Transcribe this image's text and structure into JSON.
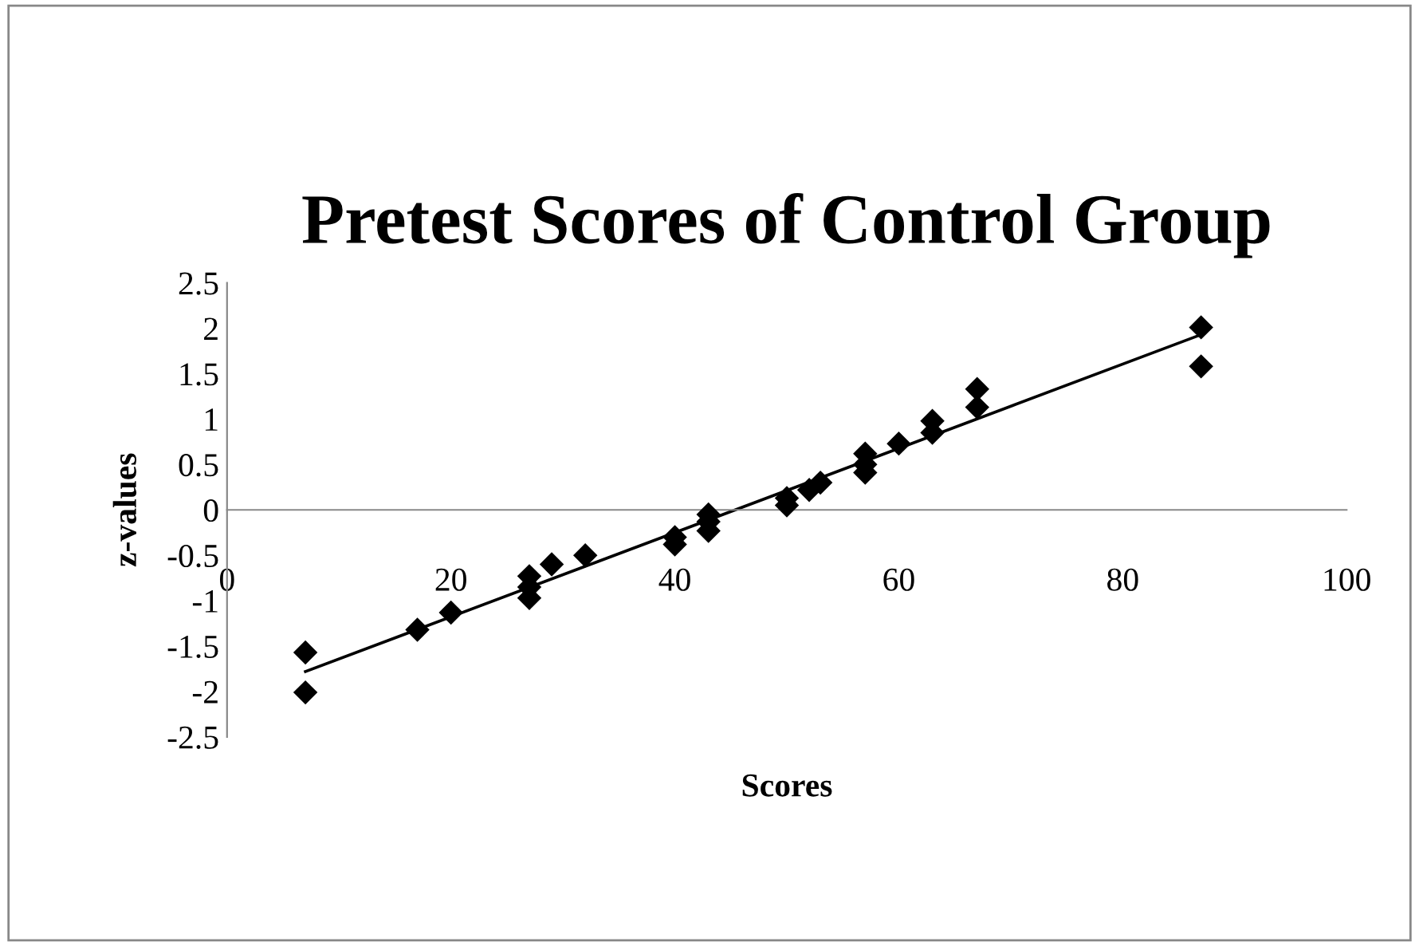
{
  "chart_data": {
    "type": "scatter",
    "title": "Pretest Scores of Control Group",
    "xlabel": "Scores",
    "ylabel": "z-values",
    "series": [
      {
        "color": "#000000",
        "marker": "diamond",
        "x": [
          7,
          7,
          17,
          20,
          27,
          27,
          27,
          29,
          32,
          40,
          40,
          43,
          43,
          43,
          50,
          50,
          52,
          53,
          57,
          57,
          57,
          60,
          63,
          63,
          67,
          67,
          87,
          87
        ],
        "values": [
          -1.57,
          -2.01,
          -1.32,
          -1.13,
          -0.73,
          -0.85,
          -0.97,
          -0.6,
          -0.5,
          -0.3,
          -0.38,
          -0.05,
          -0.13,
          -0.23,
          0.05,
          0.13,
          0.22,
          0.3,
          0.41,
          0.5,
          0.62,
          0.73,
          0.85,
          0.98,
          1.13,
          1.33,
          1.58,
          2.01
        ]
      },
      {
        "type": "line",
        "color": "#000000",
        "marker": "none",
        "line_style": "solid",
        "x": [
          7,
          87
        ],
        "values": [
          -1.78,
          1.93
        ]
      }
    ],
    "xlim": [
      0,
      100
    ],
    "xticks": [
      0,
      20,
      40,
      60,
      80,
      100
    ],
    "ylim": [
      -2.5,
      2.5
    ],
    "yticks": [
      -2.5,
      -2,
      -1.5,
      -1,
      -0.5,
      0,
      0.5,
      1,
      1.5,
      2,
      2.5
    ],
    "grid": false,
    "legend": false
  }
}
